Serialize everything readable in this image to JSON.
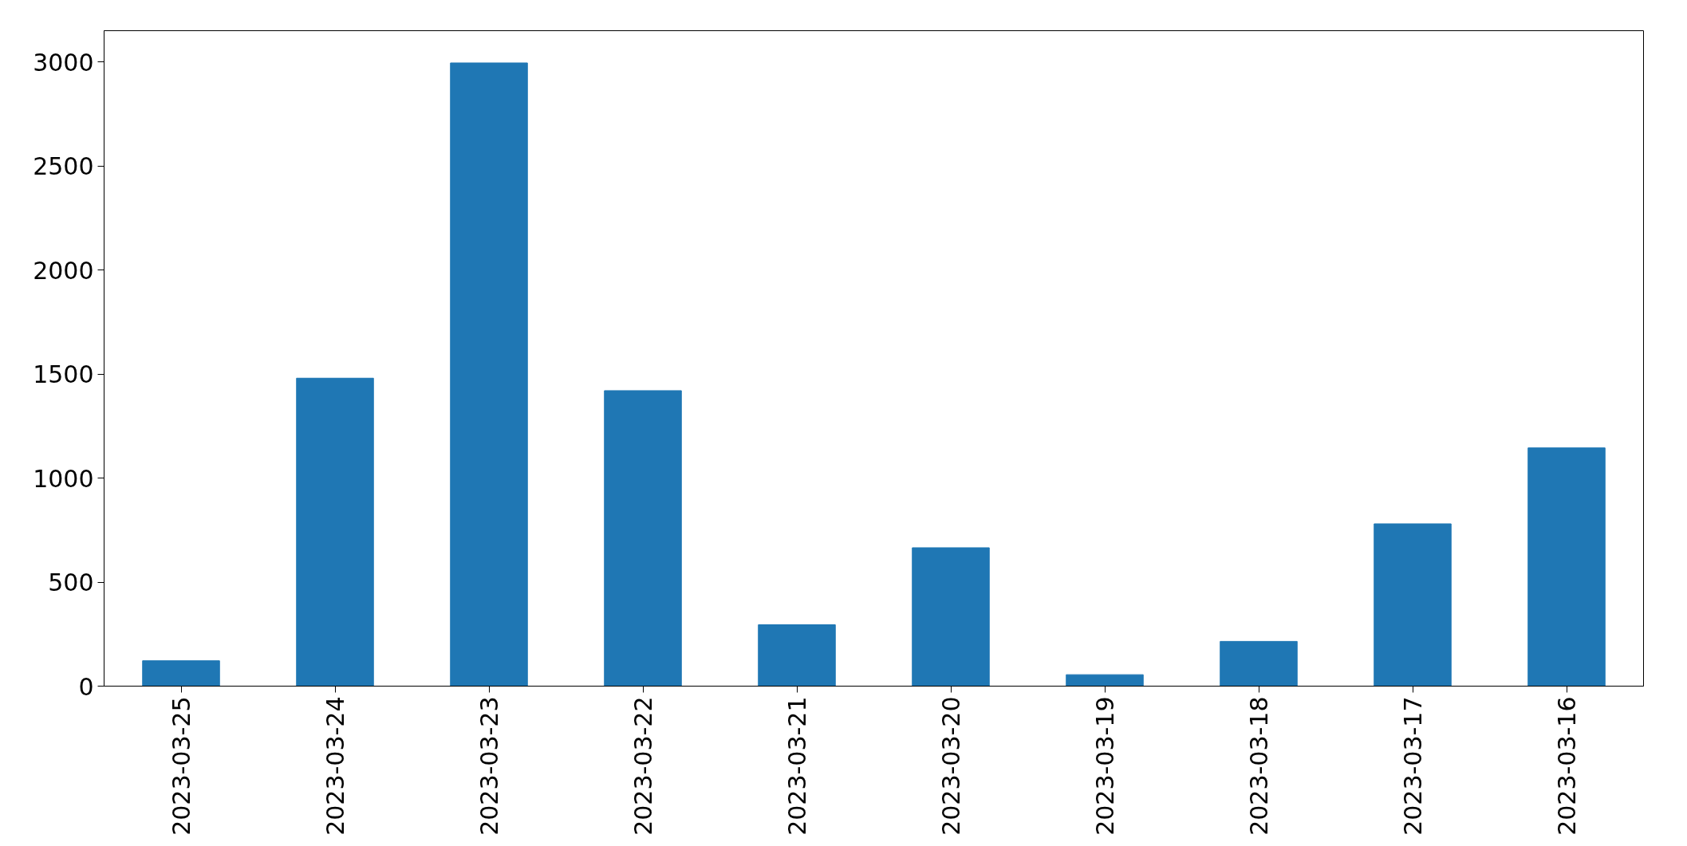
{
  "chart_data": {
    "type": "bar",
    "categories": [
      "2023-03-25",
      "2023-03-24",
      "2023-03-23",
      "2023-03-22",
      "2023-03-21",
      "2023-03-20",
      "2023-03-19",
      "2023-03-18",
      "2023-03-17",
      "2023-03-16"
    ],
    "values": [
      122,
      1480,
      2995,
      1420,
      295,
      665,
      55,
      215,
      780,
      1145
    ],
    "color": "#1f77b4",
    "ylim": [
      0,
      3150
    ],
    "yticks": [
      0,
      500,
      1000,
      1500,
      2000,
      2500,
      3000
    ],
    "grid": false
  }
}
